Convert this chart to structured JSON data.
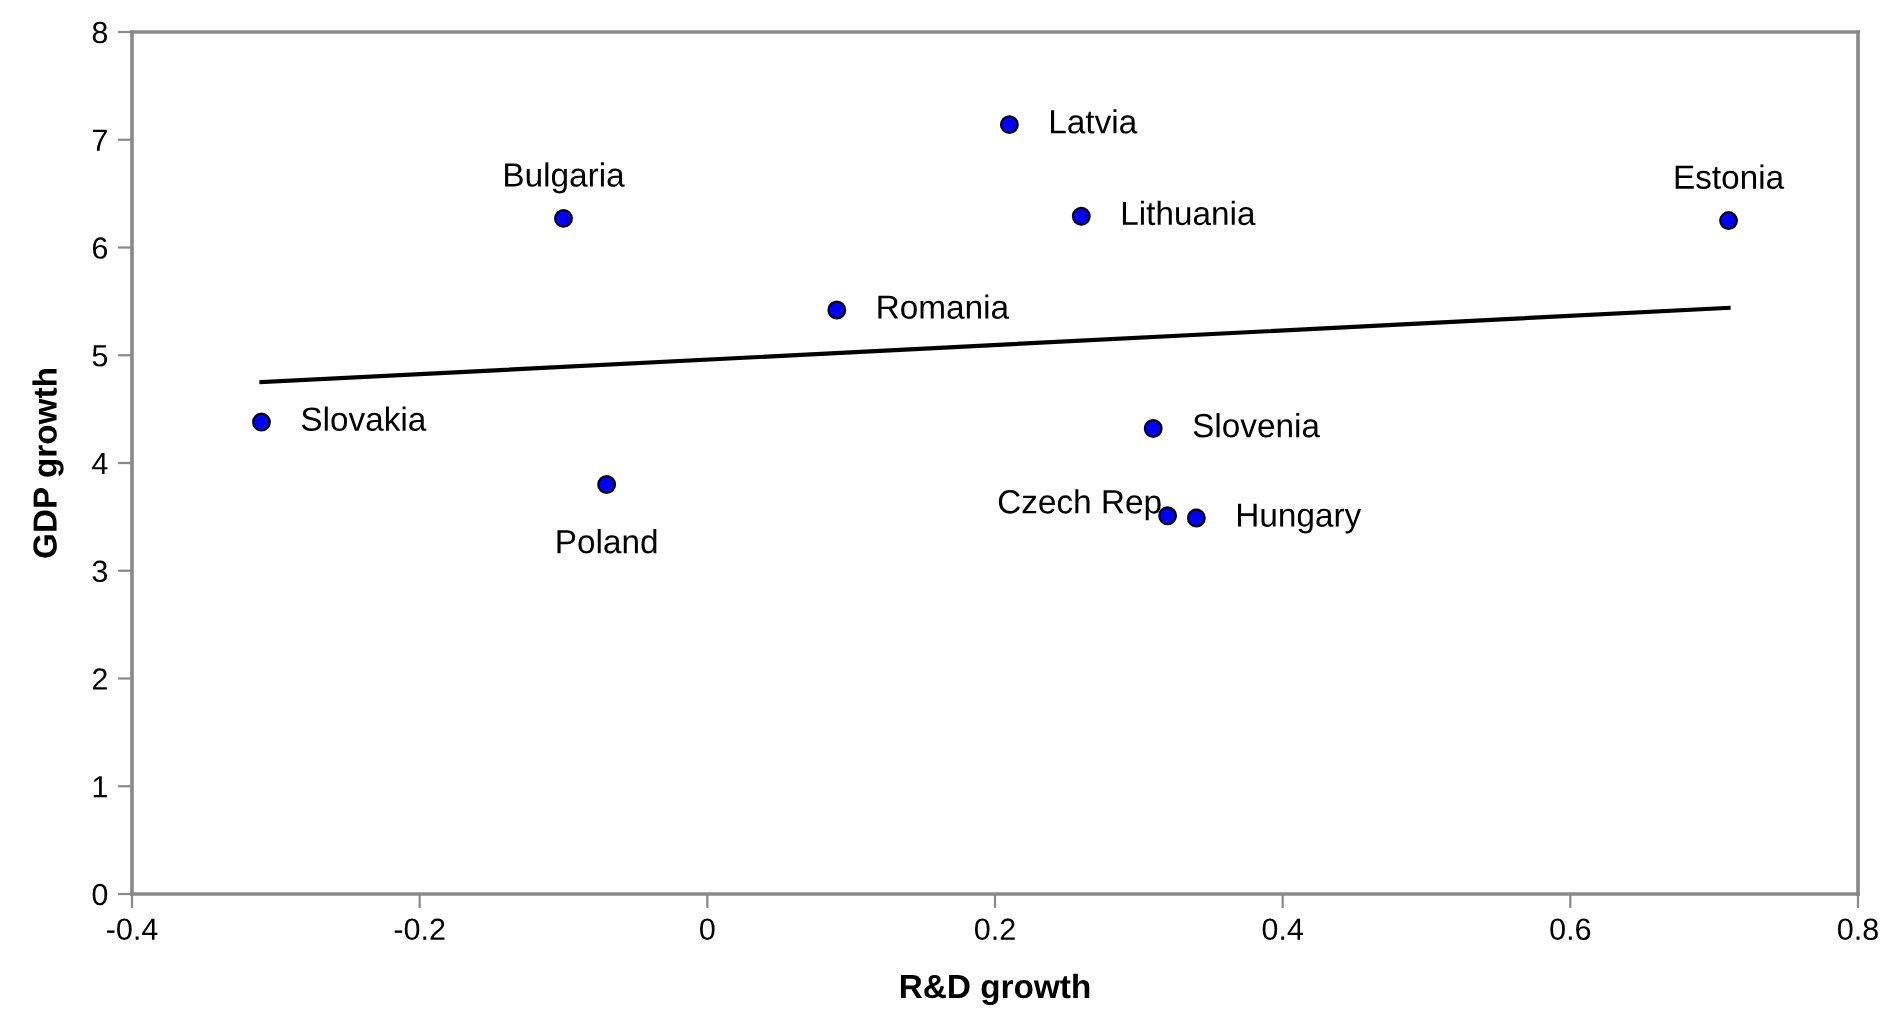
{
  "chart_data": {
    "type": "scatter",
    "xlabel": "R&D growth",
    "ylabel": "GDP growth",
    "xlim": [
      -0.4,
      0.8
    ],
    "xticks": [
      -0.4,
      -0.2,
      0,
      0.2,
      0.4,
      0.6,
      0.8
    ],
    "ylim": [
      0,
      8
    ],
    "yticks": [
      0,
      1,
      2,
      3,
      4,
      5,
      6,
      7,
      8
    ],
    "grid": false,
    "series": [
      {
        "marker": "circle",
        "color": "#0000ff",
        "x": [
          -0.31,
          -0.1,
          -0.07,
          0.09,
          0.21,
          0.26,
          0.71,
          0.31,
          0.32,
          0.34
        ],
        "values": [
          4.38,
          6.27,
          3.8,
          5.42,
          7.14,
          6.29,
          6.25,
          4.32,
          3.51,
          3.49
        ]
      },
      {
        "type": "line",
        "color": "#000000",
        "line_style": "solid",
        "x": [
          -0.31,
          0.71
        ],
        "values": [
          4.75,
          5.44
        ]
      }
    ],
    "annotations": [
      {
        "text": "Slovakia",
        "x": -0.31,
        "y": 4.38
      },
      {
        "text": "Bulgaria",
        "x": -0.1,
        "y": 6.27
      },
      {
        "text": "Poland",
        "x": -0.07,
        "y": 3.8
      },
      {
        "text": "Romania",
        "x": 0.09,
        "y": 5.42
      },
      {
        "text": "Latvia",
        "x": 0.21,
        "y": 7.14
      },
      {
        "text": "Lithuania",
        "x": 0.26,
        "y": 6.29
      },
      {
        "text": "Estonia",
        "x": 0.71,
        "y": 6.25
      },
      {
        "text": "Slovenia",
        "x": 0.31,
        "y": 4.32
      },
      {
        "text": "Czech Rep",
        "x": 0.32,
        "y": 3.51
      },
      {
        "text": "Hungary",
        "x": 0.34,
        "y": 3.49
      }
    ]
  }
}
